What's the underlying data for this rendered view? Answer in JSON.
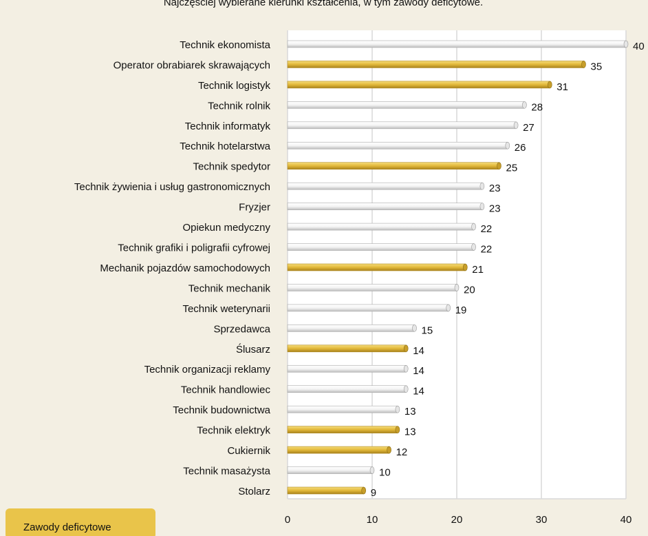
{
  "chart_data": {
    "type": "bar",
    "orientation": "horizontal",
    "title": "Najczęściej wybierane kierunki kształcenia, w tym zawody deficytowe.",
    "categories": [
      "Technik ekonomista",
      "Operator obrabiarek skrawających",
      "Technik logistyk",
      "Technik rolnik",
      "Technik informatyk",
      "Technik hotelarstwa",
      "Technik spedytor",
      "Technik żywienia i usług gastronomicznych",
      "Fryzjer",
      "Opiekun medyczny",
      "Technik grafiki i poligrafii cyfrowej",
      "Mechanik pojazdów samochodowych",
      "Technik mechanik",
      "Technik weterynarii",
      "Sprzedawca",
      "Ślusarz",
      "Technik organizacji reklamy",
      "Technik handlowiec",
      "Technik budownictwa",
      "Technik elektryk",
      "Cukiernik",
      "Technik masażysta",
      "Stolarz"
    ],
    "values": [
      40,
      35,
      31,
      28,
      27,
      26,
      25,
      23,
      23,
      22,
      22,
      21,
      20,
      19,
      15,
      14,
      14,
      14,
      13,
      13,
      12,
      10,
      9
    ],
    "colors": [
      "#f7f7f7",
      "#e2b83a",
      "#e2b83a",
      "#f7f7f7",
      "#f7f7f7",
      "#f7f7f7",
      "#e2b83a",
      "#f7f7f7",
      "#f7f7f7",
      "#f7f7f7",
      "#f7f7f7",
      "#e2b83a",
      "#f7f7f7",
      "#f7f7f7",
      "#f7f7f7",
      "#e2b83a",
      "#f7f7f7",
      "#f7f7f7",
      "#f7f7f7",
      "#e2b83a",
      "#e2b83a",
      "#f7f7f7",
      "#e2b83a"
    ],
    "legend": {
      "label": "Zawody deficytowe",
      "color": "#e9c44a",
      "position": "bottom-left"
    },
    "xlim": [
      0,
      40
    ],
    "xticks": [
      0,
      10,
      20,
      30,
      40
    ],
    "grid": true
  }
}
